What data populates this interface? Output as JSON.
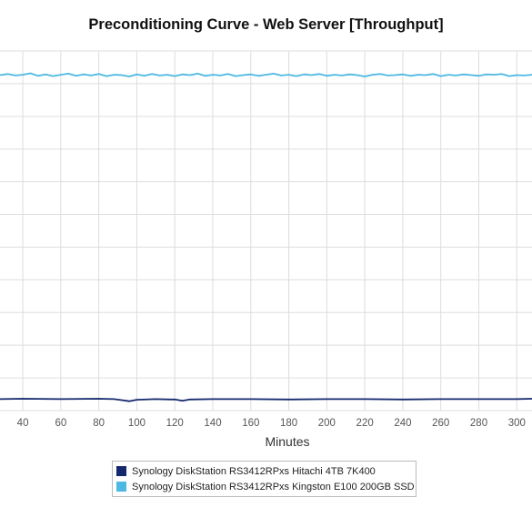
{
  "chart_data": {
    "type": "line",
    "title": "Preconditioning Curve - Web Server [Throughput]",
    "xlabel": "Minutes",
    "ylabel": "",
    "xlim": [
      28,
      308
    ],
    "ylim": [
      0,
      100
    ],
    "x_ticks": [
      40,
      60,
      80,
      100,
      120,
      140,
      160,
      180,
      200,
      220,
      240,
      260,
      280,
      300
    ],
    "grid": true,
    "legend_position": "bottom",
    "series": [
      {
        "name": "Synology DiskStation RS3412RPxs Hitachi 4TB 7K400",
        "color": "#14286e",
        "x": [
          28,
          40,
          60,
          80,
          88,
          92,
          96,
          100,
          110,
          118,
          120,
          124,
          128,
          140,
          160,
          180,
          200,
          220,
          240,
          260,
          280,
          300,
          308
        ],
        "values": [
          3.2,
          3.3,
          3.2,
          3.3,
          3.2,
          2.9,
          2.6,
          3.0,
          3.2,
          3.1,
          3.1,
          2.7,
          3.1,
          3.2,
          3.2,
          3.1,
          3.2,
          3.2,
          3.1,
          3.2,
          3.2,
          3.2,
          3.3
        ]
      },
      {
        "name": "Synology DiskStation RS3412RPxs Kingston E100 200GB SSD",
        "color": "#4db8e2",
        "x": [
          28,
          32,
          36,
          40,
          44,
          48,
          52,
          56,
          60,
          64,
          68,
          72,
          76,
          80,
          84,
          88,
          92,
          96,
          100,
          104,
          108,
          112,
          116,
          120,
          124,
          128,
          132,
          136,
          140,
          144,
          148,
          152,
          156,
          160,
          164,
          168,
          172,
          176,
          180,
          184,
          188,
          192,
          196,
          200,
          204,
          208,
          212,
          216,
          220,
          224,
          228,
          232,
          236,
          240,
          244,
          248,
          252,
          256,
          260,
          264,
          268,
          272,
          276,
          280,
          284,
          288,
          292,
          296,
          300,
          304,
          308
        ],
        "values": [
          93.3,
          93.6,
          93.2,
          93.4,
          93.8,
          93.1,
          93.5,
          93.0,
          93.4,
          93.7,
          93.1,
          93.5,
          93.2,
          93.6,
          93.0,
          93.4,
          93.3,
          92.9,
          93.5,
          93.1,
          93.6,
          93.2,
          93.4,
          93.0,
          93.5,
          93.3,
          93.7,
          93.1,
          93.4,
          93.2,
          93.6,
          93.0,
          93.3,
          93.5,
          93.1,
          93.4,
          93.7,
          93.2,
          93.4,
          93.0,
          93.5,
          93.3,
          93.6,
          93.1,
          93.4,
          93.2,
          93.5,
          93.3,
          92.9,
          93.4,
          93.6,
          93.2,
          93.3,
          93.5,
          93.1,
          93.4,
          93.3,
          93.6,
          93.0,
          93.4,
          93.2,
          93.5,
          93.3,
          93.1,
          93.5,
          93.4,
          93.6,
          93.0,
          93.3,
          93.2,
          93.4
        ]
      }
    ]
  }
}
